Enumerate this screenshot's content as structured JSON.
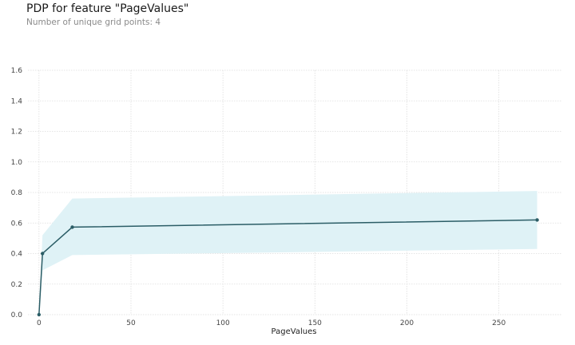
{
  "chart_data": {
    "type": "line",
    "title": "PDP for feature \"PageValues\"",
    "subtitle": "Number of unique grid points: 4",
    "xlabel": "PageValues",
    "ylabel": "",
    "xlim": [
      -6,
      284
    ],
    "ylim": [
      0,
      1.6
    ],
    "xticks": [
      0,
      50,
      100,
      150,
      200,
      250
    ],
    "yticks": [
      0.0,
      0.2,
      0.4,
      0.6,
      0.8,
      1.0,
      1.2,
      1.4,
      1.6
    ],
    "xtick_labels": [
      "0",
      "50",
      "100",
      "150",
      "200",
      "250"
    ],
    "ytick_labels": [
      "0.0",
      "0.2",
      "0.4",
      "0.6",
      "0.8",
      "1.0",
      "1.2",
      "1.4",
      "1.6"
    ],
    "grid": true,
    "series": [
      {
        "x": [
          0,
          1.9,
          18.1,
          270.8
        ],
        "values": [
          0.0,
          0.4,
          0.573,
          0.62
        ],
        "band_upper": [
          0.0,
          0.52,
          0.76,
          0.81
        ],
        "band_lower": [
          0.0,
          0.29,
          0.39,
          0.43
        ],
        "color": "#2b5d66",
        "band_color": "#dff2f6"
      }
    ]
  }
}
